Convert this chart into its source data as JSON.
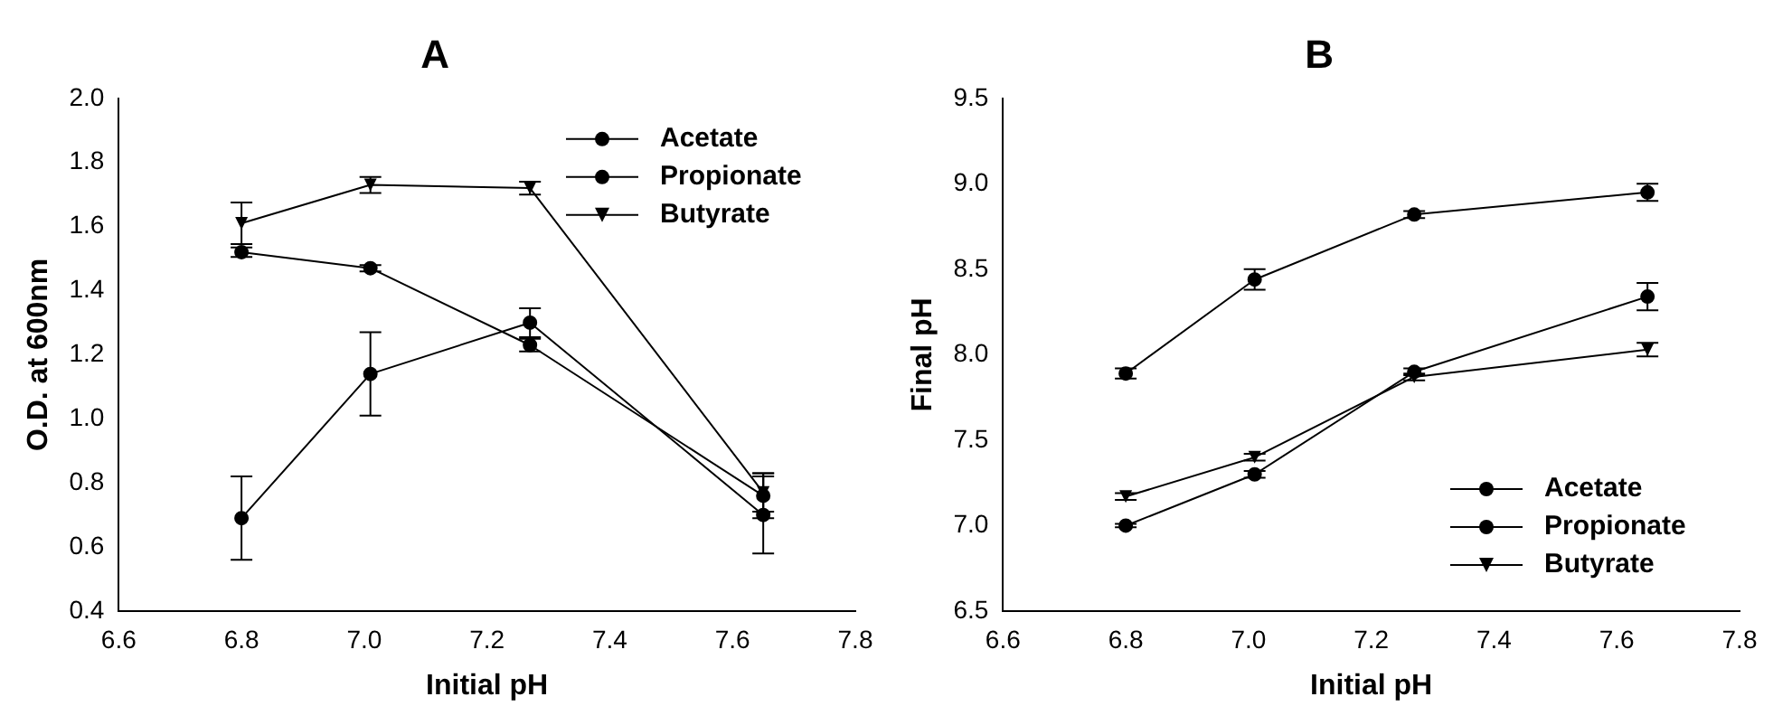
{
  "chart_data": [
    {
      "type": "line",
      "title": "A",
      "xlabel": "Initial pH",
      "ylabel": "O.D. at 600nm",
      "xlim": [
        6.6,
        7.8
      ],
      "xticks": [
        6.6,
        6.8,
        {
          "value": 7.0,
          "label": "7.0"
        },
        7.2,
        7.4,
        7.6,
        7.8
      ],
      "ylim": [
        0.4,
        2.0
      ],
      "yticks": [
        0.4,
        0.6,
        0.8,
        {
          "value": 1.0,
          "label": "1.0"
        },
        1.2,
        1.4,
        1.6,
        1.8,
        {
          "value": 2.0,
          "label": "2.0"
        }
      ],
      "x": [
        6.8,
        7.01,
        7.27,
        7.65
      ],
      "grid": false,
      "legend": "top right",
      "series": [
        {
          "name": "Acetate",
          "color": "#000000",
          "marker": "circle",
          "values": [
            1.52,
            1.47,
            1.23,
            0.76
          ],
          "errors": [
            0.015,
            0.01,
            0.02,
            0.07
          ]
        },
        {
          "name": "Propionate",
          "color": "#000000",
          "marker": "circle",
          "values": [
            0.69,
            1.14,
            1.3,
            0.7
          ],
          "errors": [
            0.13,
            0.13,
            0.045,
            0.12
          ]
        },
        {
          "name": "Butyrate",
          "color": "#000000",
          "marker": "triangle",
          "values": [
            1.61,
            1.73,
            1.72,
            0.77
          ],
          "errors": [
            0.065,
            0.025,
            0.02,
            0.06
          ]
        }
      ]
    },
    {
      "type": "line",
      "title": "B",
      "xlabel": "Initial pH",
      "ylabel": "Final pH",
      "xlim": [
        6.6,
        7.8
      ],
      "xticks": [
        6.6,
        6.8,
        {
          "value": 7.0,
          "label": "7.0"
        },
        7.2,
        7.4,
        7.6,
        7.8
      ],
      "ylim": [
        6.5,
        9.5
      ],
      "yticks": [
        6.5,
        {
          "value": 7.0,
          "label": "7.0"
        },
        7.5,
        {
          "value": 8.0,
          "label": "8.0"
        },
        8.5,
        {
          "value": 9.0,
          "label": "9.0"
        },
        9.5
      ],
      "x": [
        6.8,
        7.01,
        7.27,
        7.65
      ],
      "grid": false,
      "legend": "bottom right",
      "series": [
        {
          "name": "Acetate",
          "color": "#000000",
          "marker": "circle",
          "values": [
            7.89,
            8.44,
            8.82,
            8.95
          ],
          "errors": [
            0.03,
            0.06,
            0.02,
            0.05
          ]
        },
        {
          "name": "Propionate",
          "color": "#000000",
          "marker": "circle",
          "values": [
            7.0,
            7.3,
            7.9,
            8.34
          ],
          "errors": [
            0.01,
            0.02,
            0.02,
            0.08
          ]
        },
        {
          "name": "Butyrate",
          "color": "#000000",
          "marker": "triangle",
          "values": [
            7.17,
            7.4,
            7.87,
            8.03
          ],
          "errors": [
            0.02,
            0.02,
            0.02,
            0.04
          ]
        }
      ]
    }
  ]
}
